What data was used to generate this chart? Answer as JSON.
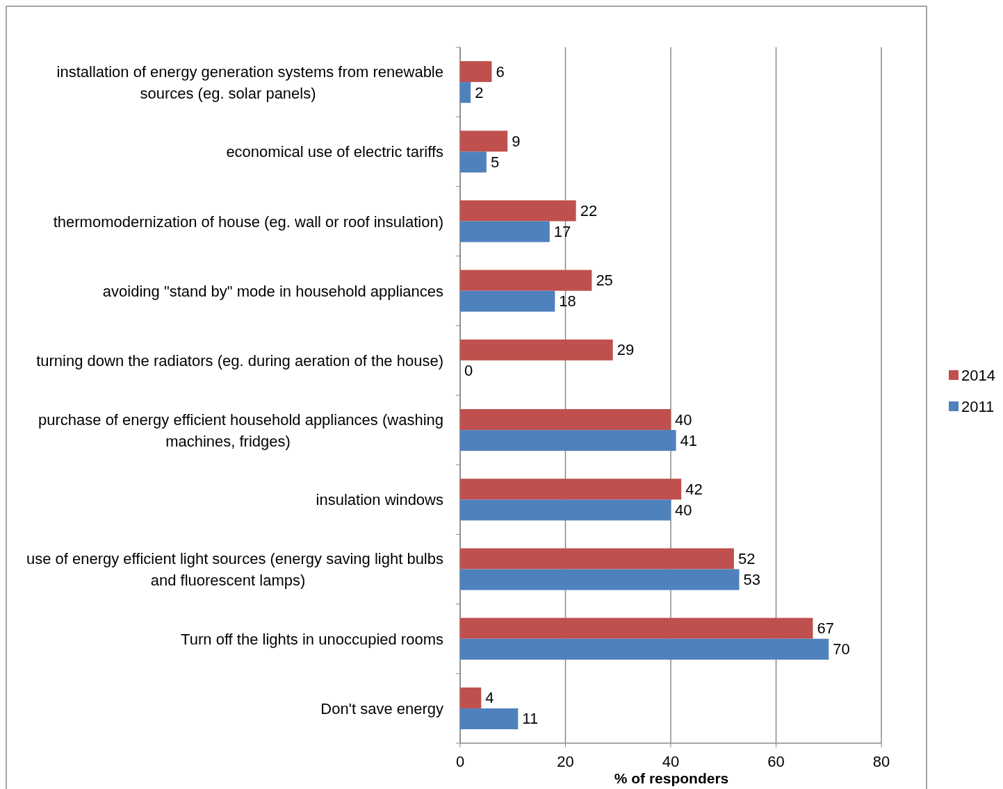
{
  "chart_data": {
    "type": "bar",
    "orientation": "horizontal",
    "xlabel": "% of responders",
    "categories": [
      "installation of energy generation systems from renewable sources (eg. solar panels)",
      "economical use of electric tariffs",
      "thermomodernization of house (eg. wall or roof insulation)",
      "avoiding \"stand by\" mode in household appliances",
      "turning down the radiators (eg. during aeration of the house)",
      "purchase of energy efficient household appliances (washing machines, fridges)",
      "insulation windows",
      "use of energy efficient light sources (energy saving light bulbs and fluorescent lamps)",
      "Turn off the lights in unoccupied rooms",
      "Don't save energy"
    ],
    "series": [
      {
        "name": "2014",
        "color": "#c0504d",
        "values": [
          6,
          9,
          22,
          25,
          29,
          40,
          42,
          52,
          67,
          4
        ]
      },
      {
        "name": "2011",
        "color": "#4f81bd",
        "values": [
          2,
          5,
          17,
          18,
          0,
          41,
          40,
          53,
          70,
          11
        ]
      }
    ],
    "xlim": [
      0,
      80
    ],
    "xticks": [
      0,
      20,
      40,
      60,
      80
    ],
    "grid": "x",
    "legend": "right",
    "data_labels": true
  }
}
